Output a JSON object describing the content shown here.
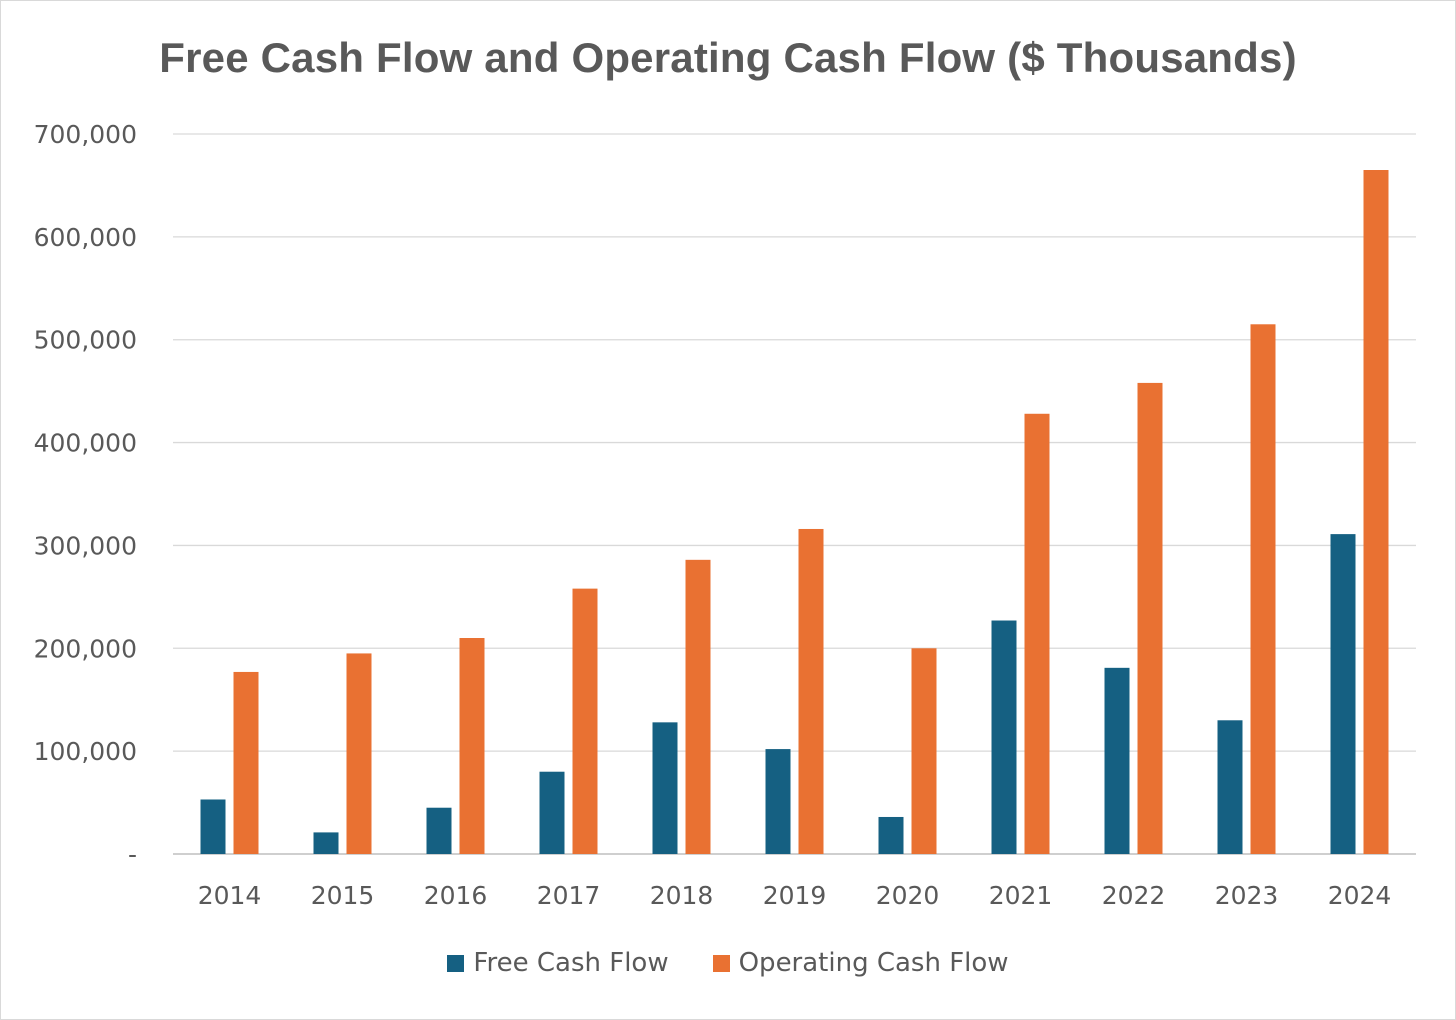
{
  "chart_data": {
    "type": "bar",
    "title": "Free Cash Flow and Operating Cash Flow ($ Thousands)",
    "xlabel": "",
    "ylabel": "",
    "ylim": [
      0,
      700000
    ],
    "y_ticks": [
      0,
      100000,
      200000,
      300000,
      400000,
      500000,
      600000,
      700000
    ],
    "y_tick_labels": [
      "-",
      "100,000",
      "200,000",
      "300,000",
      "400,000",
      "500,000",
      "600,000",
      "700,000"
    ],
    "categories": [
      "2014",
      "2015",
      "2016",
      "2017",
      "2018",
      "2019",
      "2020",
      "2021",
      "2022",
      "2023",
      "2024"
    ],
    "series": [
      {
        "name": "Free Cash Flow",
        "color": "#156082",
        "values": [
          53000,
          21000,
          45000,
          80000,
          128000,
          102000,
          36000,
          227000,
          181000,
          130000,
          311000
        ]
      },
      {
        "name": "Operating Cash Flow",
        "color": "#E97132",
        "values": [
          177000,
          195000,
          210000,
          258000,
          286000,
          316000,
          200000,
          428000,
          458000,
          515000,
          665000
        ]
      }
    ],
    "grid": true,
    "legend_position": "bottom"
  }
}
